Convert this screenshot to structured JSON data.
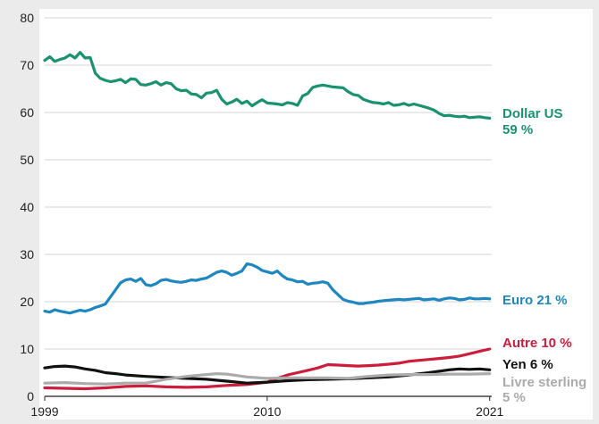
{
  "chart_data": {
    "type": "line",
    "title": "",
    "xlabel": "",
    "ylabel": "",
    "ylim": [
      0,
      80
    ],
    "y_ticks": [
      0,
      10,
      20,
      30,
      40,
      50,
      60,
      70,
      80
    ],
    "x_ticks": [
      1999,
      2010,
      2021
    ],
    "xlim": [
      1999,
      2021.1
    ],
    "grid": "horizontal",
    "legend": "none; series labeled at right end of lines",
    "series": [
      {
        "name": "Dollar US",
        "value_label": "59 %",
        "color": "#1a9270",
        "x": [
          1999.0,
          1999.25,
          1999.5,
          1999.75,
          2000.0,
          2000.25,
          2000.5,
          2000.75,
          2001.0,
          2001.25,
          2001.5,
          2001.75,
          2002.0,
          2002.25,
          2002.5,
          2002.75,
          2003.0,
          2003.25,
          2003.5,
          2003.75,
          2004.0,
          2004.25,
          2004.5,
          2004.75,
          2005.0,
          2005.25,
          2005.5,
          2005.75,
          2006.0,
          2006.25,
          2006.5,
          2006.75,
          2007.0,
          2007.25,
          2007.5,
          2007.75,
          2008.0,
          2008.25,
          2008.5,
          2008.75,
          2009.0,
          2009.25,
          2009.5,
          2009.75,
          2010.0,
          2010.25,
          2010.5,
          2010.75,
          2011.0,
          2011.25,
          2011.5,
          2011.75,
          2012.0,
          2012.25,
          2012.5,
          2012.75,
          2013.0,
          2013.25,
          2013.5,
          2013.75,
          2014.0,
          2014.25,
          2014.5,
          2014.75,
          2015.0,
          2015.25,
          2015.5,
          2015.75,
          2016.0,
          2016.25,
          2016.5,
          2016.75,
          2017.0,
          2017.25,
          2017.5,
          2017.75,
          2018.0,
          2018.25,
          2018.5,
          2018.75,
          2019.0,
          2019.25,
          2019.5,
          2019.75,
          2020.0,
          2020.25,
          2020.5,
          2020.75,
          2021.0
        ],
        "values": [
          71.0,
          71.8,
          70.8,
          71.2,
          71.5,
          72.2,
          71.5,
          72.7,
          71.5,
          71.6,
          68.3,
          67.2,
          66.8,
          66.5,
          66.7,
          67.0,
          66.3,
          67.1,
          67.0,
          65.9,
          65.8,
          66.1,
          66.5,
          65.8,
          66.3,
          66.1,
          65.0,
          64.6,
          64.7,
          63.9,
          63.8,
          63.1,
          64.1,
          64.2,
          64.7,
          62.8,
          61.8,
          62.2,
          62.8,
          61.9,
          62.4,
          61.4,
          62.1,
          62.7,
          62.0,
          61.9,
          61.8,
          61.6,
          62.1,
          61.9,
          61.5,
          63.5,
          64.0,
          65.3,
          65.6,
          65.8,
          65.6,
          65.4,
          65.3,
          65.2,
          64.4,
          63.8,
          63.6,
          62.8,
          62.4,
          62.1,
          62.0,
          61.8,
          62.1,
          61.5,
          61.6,
          61.9,
          61.5,
          61.8,
          61.5,
          61.2,
          60.9,
          60.5,
          59.8,
          59.3,
          59.4,
          59.2,
          59.1,
          59.2,
          58.9,
          59.0,
          59.1,
          58.9,
          58.8
        ]
      },
      {
        "name": "Euro",
        "value_label": "21 %",
        "color": "#1f87c0",
        "x": [
          1999.0,
          1999.25,
          1999.5,
          1999.75,
          2000.0,
          2000.25,
          2000.5,
          2000.75,
          2001.0,
          2001.25,
          2001.5,
          2001.75,
          2002.0,
          2002.25,
          2002.5,
          2002.75,
          2003.0,
          2003.25,
          2003.5,
          2003.75,
          2004.0,
          2004.25,
          2004.5,
          2004.75,
          2005.0,
          2005.25,
          2005.5,
          2005.75,
          2006.0,
          2006.25,
          2006.5,
          2006.75,
          2007.0,
          2007.25,
          2007.5,
          2007.75,
          2008.0,
          2008.25,
          2008.5,
          2008.75,
          2009.0,
          2009.25,
          2009.5,
          2009.75,
          2010.0,
          2010.25,
          2010.5,
          2010.75,
          2011.0,
          2011.25,
          2011.5,
          2011.75,
          2012.0,
          2012.25,
          2012.5,
          2012.75,
          2013.0,
          2013.25,
          2013.5,
          2013.75,
          2014.0,
          2014.25,
          2014.5,
          2014.75,
          2015.0,
          2015.25,
          2015.5,
          2015.75,
          2016.0,
          2016.25,
          2016.5,
          2016.75,
          2017.0,
          2017.25,
          2017.5,
          2017.75,
          2018.0,
          2018.25,
          2018.5,
          2018.75,
          2019.0,
          2019.25,
          2019.5,
          2019.75,
          2020.0,
          2020.25,
          2020.5,
          2020.75,
          2021.0
        ],
        "values": [
          18.0,
          17.8,
          18.3,
          18.0,
          17.8,
          17.6,
          17.9,
          18.2,
          18.0,
          18.3,
          18.8,
          19.1,
          19.5,
          21.0,
          22.5,
          24.0,
          24.6,
          24.8,
          24.3,
          24.9,
          23.6,
          23.4,
          23.8,
          24.5,
          24.7,
          24.4,
          24.2,
          24.1,
          24.3,
          24.6,
          24.5,
          24.8,
          25.0,
          25.6,
          26.2,
          26.5,
          26.2,
          25.6,
          26.0,
          26.5,
          28.0,
          27.8,
          27.3,
          26.6,
          26.3,
          26.0,
          26.5,
          25.5,
          24.8,
          24.6,
          24.2,
          24.3,
          23.7,
          23.9,
          24.0,
          24.2,
          23.9,
          22.5,
          21.5,
          20.5,
          20.1,
          19.9,
          19.6,
          19.6,
          19.8,
          19.9,
          20.1,
          20.2,
          20.3,
          20.4,
          20.5,
          20.4,
          20.5,
          20.6,
          20.7,
          20.4,
          20.5,
          20.6,
          20.3,
          20.6,
          20.8,
          20.7,
          20.4,
          20.5,
          20.8,
          20.6,
          20.6,
          20.7,
          20.6
        ]
      },
      {
        "name": "Autre",
        "value_label": "10 %",
        "color": "#cc1d3c",
        "x": [
          1999.0,
          2000.0,
          2001.0,
          2002.0,
          2003.0,
          2004.0,
          2005.0,
          2006.0,
          2007.0,
          2008.0,
          2009.0,
          2010.0,
          2010.5,
          2011.0,
          2011.5,
          2012.0,
          2012.5,
          2013.0,
          2013.5,
          2014.0,
          2014.5,
          2015.0,
          2015.5,
          2016.0,
          2016.5,
          2017.0,
          2017.5,
          2018.0,
          2018.5,
          2019.0,
          2019.5,
          2020.0,
          2020.5,
          2021.0
        ],
        "values": [
          1.8,
          1.7,
          1.6,
          1.8,
          2.1,
          2.2,
          2.0,
          1.9,
          2.0,
          2.3,
          2.5,
          3.0,
          3.8,
          4.5,
          5.0,
          5.5,
          6.0,
          6.7,
          6.6,
          6.5,
          6.4,
          6.5,
          6.6,
          6.8,
          7.0,
          7.4,
          7.6,
          7.8,
          8.0,
          8.2,
          8.5,
          9.0,
          9.5,
          10.0
        ]
      },
      {
        "name": "Yen",
        "value_label": "6 %",
        "color": "#111111",
        "x": [
          1999.0,
          1999.5,
          2000.0,
          2000.5,
          2001.0,
          2001.5,
          2002.0,
          2002.5,
          2003.0,
          2004.0,
          2005.0,
          2006.0,
          2007.0,
          2008.0,
          2009.0,
          2010.0,
          2011.0,
          2012.0,
          2013.0,
          2014.0,
          2015.0,
          2016.0,
          2017.0,
          2018.0,
          2019.0,
          2019.5,
          2020.0,
          2020.5,
          2021.0
        ],
        "values": [
          6.0,
          6.3,
          6.4,
          6.2,
          5.8,
          5.5,
          5.0,
          4.8,
          4.5,
          4.2,
          4.0,
          3.8,
          3.6,
          3.2,
          2.8,
          3.0,
          3.3,
          3.5,
          3.6,
          3.7,
          3.9,
          4.1,
          4.5,
          5.0,
          5.6,
          5.8,
          5.7,
          5.8,
          5.6
        ]
      },
      {
        "name": "Livre sterling",
        "value_label": "5 %",
        "color": "#ababab",
        "x": [
          1999.0,
          2000.0,
          2001.0,
          2002.0,
          2003.0,
          2004.0,
          2005.0,
          2006.0,
          2007.0,
          2007.5,
          2008.0,
          2009.0,
          2010.0,
          2011.0,
          2012.0,
          2013.0,
          2014.0,
          2015.0,
          2016.0,
          2017.0,
          2018.0,
          2019.0,
          2020.0,
          2021.0
        ],
        "values": [
          2.8,
          2.9,
          2.7,
          2.6,
          2.8,
          2.8,
          3.6,
          4.2,
          4.6,
          4.8,
          4.7,
          4.1,
          3.8,
          3.9,
          3.9,
          3.9,
          3.8,
          4.2,
          4.5,
          4.6,
          4.6,
          4.7,
          4.7,
          4.8
        ]
      }
    ]
  }
}
